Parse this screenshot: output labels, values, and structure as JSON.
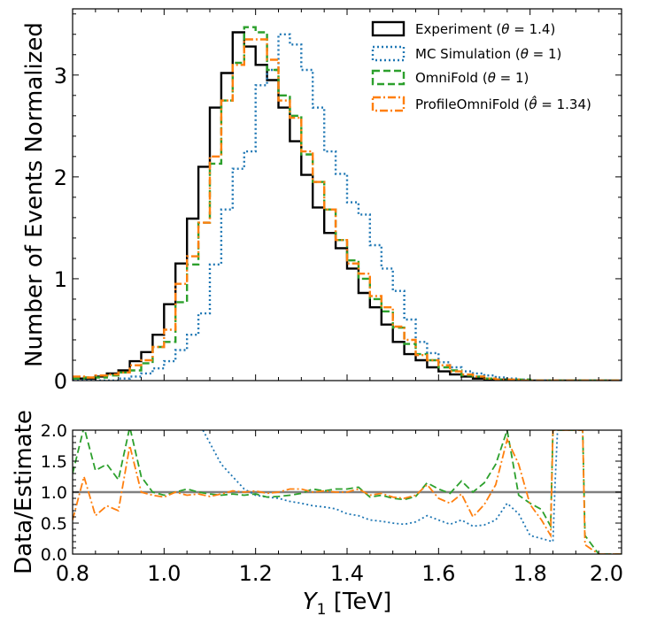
{
  "chart_data": [
    {
      "type": "line",
      "panel": "main",
      "ylabel": "Number of Events Normalized",
      "xlim": [
        0.8,
        2.0
      ],
      "ylim": [
        0,
        3.65
      ],
      "yticks": [
        "0",
        "1",
        "2",
        "3"
      ],
      "legend_position": "top-right",
      "bin_edges": [
        0.8,
        0.825,
        0.85,
        0.875,
        0.9,
        0.925,
        0.95,
        0.975,
        1.0,
        1.025,
        1.05,
        1.075,
        1.1,
        1.125,
        1.15,
        1.175,
        1.2,
        1.225,
        1.25,
        1.275,
        1.3,
        1.325,
        1.35,
        1.375,
        1.4,
        1.425,
        1.45,
        1.475,
        1.5,
        1.525,
        1.55,
        1.575,
        1.6,
        1.625,
        1.65,
        1.675,
        1.7,
        1.725,
        1.75,
        1.775,
        1.8,
        1.825,
        1.85,
        1.875,
        1.9,
        1.925,
        1.95,
        1.975,
        2.0
      ],
      "series": [
        {
          "name": "Experiment ($\\theta = 1.4$)",
          "legend_parts": [
            "Experiment (",
            "θ",
            " = 1.4)"
          ],
          "color": "#000000",
          "style": "solid",
          "values": [
            0.02,
            0.02,
            0.04,
            0.07,
            0.1,
            0.19,
            0.28,
            0.45,
            0.75,
            1.15,
            1.59,
            2.1,
            2.68,
            3.02,
            3.42,
            3.28,
            3.1,
            2.95,
            2.68,
            2.35,
            2.02,
            1.7,
            1.45,
            1.3,
            1.1,
            0.86,
            0.72,
            0.55,
            0.38,
            0.26,
            0.2,
            0.13,
            0.09,
            0.06,
            0.04,
            0.02,
            0.01,
            0.01,
            0.0,
            0.0,
            0.0,
            0.0,
            0.0,
            0.0,
            0.0,
            0.0,
            0.0,
            0.0
          ]
        },
        {
          "name": "MC Simulation ($\\theta = 1$)",
          "legend_parts": [
            "MC Simulation (",
            "θ",
            " = 1)"
          ],
          "color": "#1f77b4",
          "style": "dotted",
          "values": [
            0.0,
            0.0,
            0.0,
            0.0,
            0.02,
            0.04,
            0.07,
            0.12,
            0.19,
            0.3,
            0.45,
            0.66,
            1.14,
            1.68,
            2.08,
            2.25,
            2.9,
            3.05,
            3.4,
            3.3,
            3.05,
            2.68,
            2.25,
            2.03,
            1.75,
            1.63,
            1.33,
            1.1,
            0.88,
            0.6,
            0.38,
            0.27,
            0.18,
            0.13,
            0.09,
            0.07,
            0.05,
            0.03,
            0.02,
            0.01,
            0.0,
            0.0,
            0.0,
            0.0,
            0.0,
            0.0,
            0.0,
            0.0
          ]
        },
        {
          "name": "OmniFold ($\\theta = 1$)",
          "legend_parts": [
            "OmniFold (",
            "θ",
            " = 1)"
          ],
          "color": "#2ca02c",
          "style": "dashed",
          "values": [
            0.02,
            0.03,
            0.03,
            0.05,
            0.08,
            0.1,
            0.17,
            0.33,
            0.38,
            0.77,
            1.14,
            1.55,
            2.13,
            2.75,
            3.12,
            3.47,
            3.42,
            3.05,
            2.8,
            2.6,
            2.22,
            1.95,
            1.68,
            1.38,
            1.18,
            1.0,
            0.8,
            0.68,
            0.52,
            0.36,
            0.26,
            0.2,
            0.13,
            0.1,
            0.05,
            0.04,
            0.02,
            0.01,
            0.01,
            0.01,
            0.0,
            0.0,
            0.0,
            0.0,
            0.0,
            0.0,
            0.0,
            0.0
          ]
        },
        {
          "name": "ProfileOmniFold ($\\hat{\\theta} = 1.34$)",
          "legend_parts": [
            "ProfileOmniFold (",
            "θ̂",
            " = 1.34)"
          ],
          "color": "#ff7f0e",
          "style": "dashdot",
          "values": [
            0.04,
            0.03,
            0.05,
            0.06,
            0.08,
            0.15,
            0.2,
            0.33,
            0.5,
            0.95,
            1.22,
            1.55,
            2.2,
            2.75,
            3.1,
            3.35,
            3.35,
            3.15,
            2.75,
            2.58,
            2.25,
            1.95,
            1.68,
            1.38,
            1.15,
            1.05,
            0.83,
            0.72,
            0.53,
            0.4,
            0.25,
            0.2,
            0.15,
            0.09,
            0.06,
            0.04,
            0.02,
            0.01,
            0.01,
            0.0,
            0.0,
            0.0,
            0.0,
            0.0,
            0.0,
            0.0,
            0.0,
            0.0
          ]
        }
      ]
    },
    {
      "type": "line",
      "panel": "ratio",
      "xlabel_parts": [
        "Y",
        "1",
        " [TeV]"
      ],
      "ylabel": "Data/Estimate",
      "xlim": [
        0.8,
        2.0
      ],
      "ylim": [
        0,
        2.0
      ],
      "xticks": [
        "0.8",
        "1.0",
        "1.2",
        "1.4",
        "1.6",
        "1.8",
        "2.0"
      ],
      "yticks": [
        "0.0",
        "0.5",
        "1.0",
        "1.5",
        "2.0"
      ],
      "reference_line": 1.0,
      "reference_color": "#808080",
      "series": [
        {
          "name": "MC Simulation",
          "color": "#1f77b4",
          "style": "dotted",
          "x": [
            1.085,
            1.125,
            1.15,
            1.175,
            1.2,
            1.225,
            1.25,
            1.275,
            1.3,
            1.325,
            1.35,
            1.375,
            1.4,
            1.425,
            1.45,
            1.475,
            1.5,
            1.525,
            1.55,
            1.575,
            1.6,
            1.625,
            1.65,
            1.675,
            1.7,
            1.725,
            1.75,
            1.775,
            1.8,
            1.825,
            1.85,
            1.855,
            1.86,
            1.865
          ],
          "values": [
            2.0,
            1.45,
            1.25,
            1.05,
            0.95,
            0.92,
            0.9,
            0.85,
            0.82,
            0.78,
            0.76,
            0.73,
            0.65,
            0.62,
            0.55,
            0.53,
            0.5,
            0.48,
            0.52,
            0.62,
            0.55,
            0.48,
            0.55,
            0.45,
            0.47,
            0.55,
            0.82,
            0.65,
            0.3,
            0.25,
            0.2,
            1.2,
            2.0,
            2.0
          ]
        },
        {
          "name": "OmniFold",
          "color": "#2ca02c",
          "style": "dashed",
          "x": [
            0.8,
            0.825,
            0.85,
            0.875,
            0.9,
            0.925,
            0.95,
            0.975,
            1.0,
            1.025,
            1.05,
            1.075,
            1.1,
            1.125,
            1.15,
            1.175,
            1.2,
            1.225,
            1.25,
            1.275,
            1.3,
            1.325,
            1.35,
            1.375,
            1.4,
            1.425,
            1.45,
            1.475,
            1.5,
            1.525,
            1.55,
            1.575,
            1.6,
            1.625,
            1.65,
            1.675,
            1.7,
            1.725,
            1.75,
            1.775,
            1.8,
            1.825,
            1.845,
            1.85,
            1.855,
            1.915,
            1.92,
            1.94,
            1.95,
            1.975,
            2.0
          ],
          "values": [
            1.3,
            2.05,
            1.35,
            1.45,
            1.2,
            2.05,
            1.25,
            1.0,
            0.95,
            1.0,
            1.05,
            1.0,
            0.97,
            0.95,
            0.97,
            0.95,
            0.97,
            0.92,
            0.93,
            0.95,
            0.98,
            1.05,
            1.02,
            1.05,
            1.05,
            1.08,
            0.92,
            0.95,
            0.9,
            0.88,
            0.93,
            1.15,
            1.05,
            0.98,
            1.18,
            1.0,
            1.15,
            1.45,
            2.0,
            0.95,
            0.82,
            0.72,
            0.45,
            2.0,
            2.0,
            2.0,
            0.3,
            0.1,
            0.0,
            0.0,
            0.0
          ]
        },
        {
          "name": "ProfileOmniFold",
          "color": "#ff7f0e",
          "style": "dashdot",
          "x": [
            0.8,
            0.825,
            0.85,
            0.875,
            0.9,
            0.925,
            0.95,
            0.975,
            1.0,
            1.025,
            1.05,
            1.075,
            1.1,
            1.125,
            1.15,
            1.175,
            1.2,
            1.225,
            1.25,
            1.275,
            1.3,
            1.325,
            1.35,
            1.375,
            1.4,
            1.425,
            1.45,
            1.475,
            1.5,
            1.525,
            1.55,
            1.575,
            1.6,
            1.625,
            1.65,
            1.675,
            1.7,
            1.725,
            1.75,
            1.775,
            1.8,
            1.825,
            1.845,
            1.85,
            1.855,
            1.915,
            1.92,
            1.94,
            1.95,
            1.975,
            2.0
          ],
          "values": [
            0.55,
            1.25,
            0.62,
            0.78,
            0.7,
            1.75,
            1.0,
            0.95,
            0.92,
            1.0,
            0.95,
            0.97,
            0.93,
            0.97,
            1.02,
            1.0,
            1.02,
            0.98,
            1.0,
            1.05,
            1.05,
            1.0,
            1.02,
            1.0,
            1.0,
            1.05,
            0.95,
            0.98,
            0.92,
            0.9,
            0.95,
            1.12,
            0.9,
            0.82,
            0.97,
            0.6,
            0.8,
            1.12,
            1.85,
            1.45,
            0.8,
            0.55,
            0.3,
            2.0,
            2.0,
            2.0,
            0.15,
            0.05,
            0.0,
            0.0,
            0.0
          ]
        }
      ]
    }
  ]
}
